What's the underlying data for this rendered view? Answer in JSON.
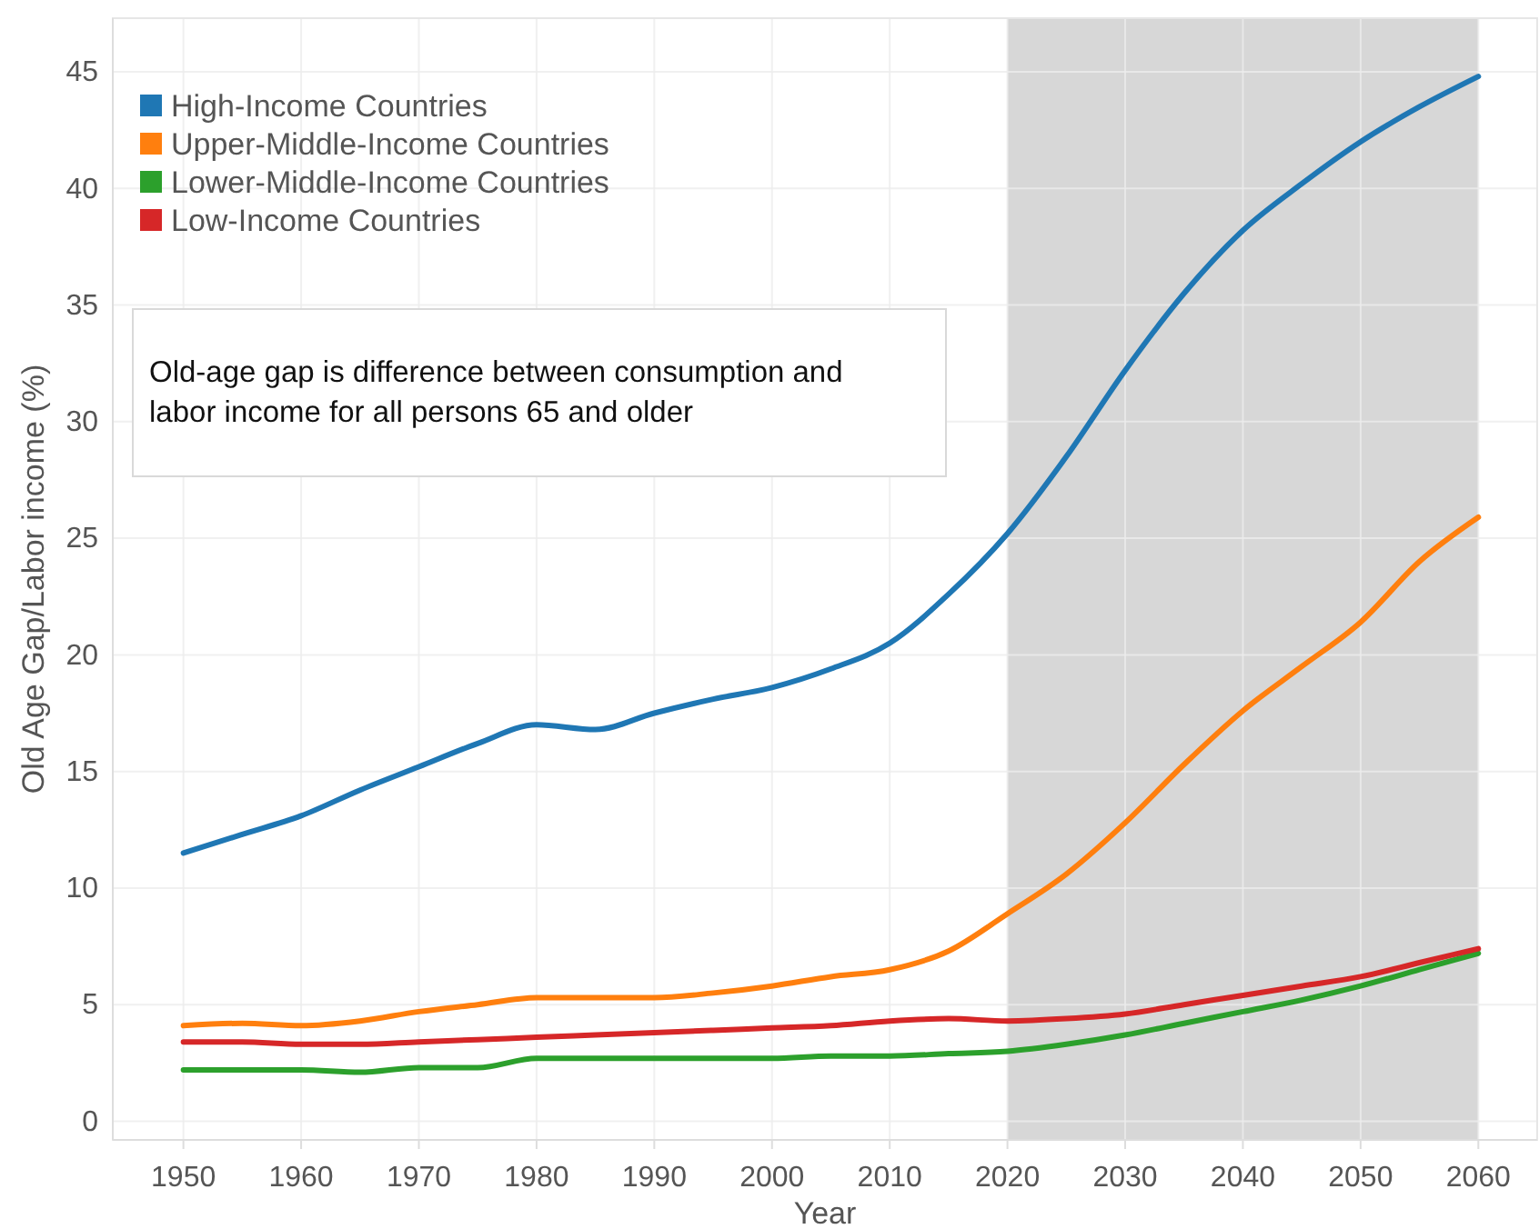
{
  "chart_data": {
    "type": "line",
    "xlabel": "Year",
    "ylabel": "Old Age Gap/Labor income (%)",
    "annotations": [
      "Old-age gap is difference between consumption and labor income for all persons 65 and older"
    ],
    "x": [
      1950,
      1955,
      1960,
      1965,
      1970,
      1975,
      1980,
      1985,
      1990,
      1995,
      2000,
      2005,
      2010,
      2015,
      2020,
      2025,
      2030,
      2035,
      2040,
      2045,
      2050,
      2055,
      2060
    ],
    "series": [
      {
        "name": "High-Income Countries",
        "color": "#1f77b4",
        "values": [
          11.5,
          12.3,
          13.1,
          14.2,
          15.2,
          16.2,
          17.0,
          16.8,
          17.5,
          18.1,
          18.6,
          19.4,
          20.5,
          22.6,
          25.2,
          28.5,
          32.2,
          35.5,
          38.2,
          40.2,
          42.0,
          43.5,
          44.8
        ]
      },
      {
        "name": "Upper-Middle-Income Countries",
        "color": "#ff7f0e",
        "values": [
          4.1,
          4.2,
          4.1,
          4.3,
          4.7,
          5.0,
          5.3,
          5.3,
          5.3,
          5.5,
          5.8,
          6.2,
          6.5,
          7.3,
          8.9,
          10.6,
          12.8,
          15.3,
          17.6,
          19.5,
          21.4,
          24.0,
          25.9
        ]
      },
      {
        "name": "Lower-Middle-Income Countries",
        "color": "#2ca02c",
        "values": [
          2.2,
          2.2,
          2.2,
          2.1,
          2.3,
          2.3,
          2.7,
          2.7,
          2.7,
          2.7,
          2.7,
          2.8,
          2.8,
          2.9,
          3.0,
          3.3,
          3.7,
          4.2,
          4.7,
          5.2,
          5.8,
          6.5,
          7.2
        ]
      },
      {
        "name": "Low-Income Countries",
        "color": "#d62728",
        "values": [
          3.4,
          3.4,
          3.3,
          3.3,
          3.4,
          3.5,
          3.6,
          3.7,
          3.8,
          3.9,
          4.0,
          4.1,
          4.3,
          4.4,
          4.3,
          4.4,
          4.6,
          5.0,
          5.4,
          5.8,
          6.2,
          6.8,
          7.4
        ]
      }
    ],
    "bands": [
      {
        "axis": "x",
        "from": 2020,
        "to": 2060,
        "color": "#d7d7d7"
      }
    ],
    "xlim": [
      1944,
      2065
    ],
    "xticks": [
      1950,
      1960,
      1970,
      1980,
      1990,
      2000,
      2010,
      2020,
      2030,
      2040,
      2050,
      2060
    ],
    "ylim": [
      -0.8,
      47.3
    ],
    "yticks": [
      0,
      5,
      10,
      15,
      20,
      25,
      30,
      35,
      40,
      45
    ],
    "grid": true,
    "legend": "top left",
    "marker": "none",
    "line_style": "solid"
  }
}
